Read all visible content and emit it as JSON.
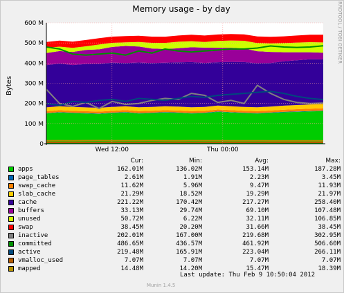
{
  "chart_data": {
    "type": "area",
    "title": "Memory usage - by day",
    "ylabel": "Bytes",
    "xlabel": "",
    "x_ticks": [
      "Wed 12:00",
      "Thu 00:00"
    ],
    "y_ticks": [
      "0",
      "100 M",
      "200 M",
      "300 M",
      "400 M",
      "500 M",
      "600 M"
    ],
    "ylim": [
      0,
      600
    ],
    "y_unit": "M",
    "grid": true,
    "stack_order": [
      "apps",
      "page_tables",
      "swap_cache",
      "slab_cache",
      "cache",
      "buffers",
      "unused",
      "swap"
    ],
    "line_series": [
      "inactive",
      "committed",
      "active",
      "vmalloc_used",
      "mapped"
    ],
    "series": [
      {
        "name": "apps",
        "color": "#00cc00",
        "cur": "162.01M",
        "min": "136.02M",
        "avg": "153.14M",
        "max": "187.28M",
        "values": [
          150,
          155,
          152,
          150,
          148,
          152,
          155,
          150,
          152,
          155,
          153,
          150,
          152,
          158,
          155,
          152,
          150,
          153,
          156,
          158,
          160,
          162
        ]
      },
      {
        "name": "page_tables",
        "color": "#0066b3",
        "cur": "2.61M",
        "min": "1.91M",
        "avg": "2.23M",
        "max": "3.45M",
        "values": [
          2.2,
          2.2,
          2.3,
          2.2,
          2.1,
          2.2,
          2.3,
          2.2,
          2.2,
          2.3,
          2.2,
          2.2,
          2.3,
          2.2,
          2.2,
          2.3,
          2.2,
          2.2,
          2.3,
          2.4,
          2.5,
          2.6
        ]
      },
      {
        "name": "swap_cache",
        "color": "#ff8000",
        "cur": "11.62M",
        "min": "5.96M",
        "avg": "9.47M",
        "max": "11.93M",
        "values": [
          9,
          9.5,
          9,
          9.2,
          9.4,
          9,
          9.6,
          9.5,
          9.2,
          9.4,
          9.6,
          9.5,
          9.3,
          9.6,
          9.7,
          9.5,
          9.6,
          9.8,
          10.5,
          11,
          11.5,
          11.6
        ]
      },
      {
        "name": "slab_cache",
        "color": "#ffcc00",
        "cur": "21.29M",
        "min": "18.52M",
        "avg": "19.29M",
        "max": "21.97M",
        "values": [
          19,
          19,
          19.2,
          19.1,
          19,
          19.3,
          19.2,
          19,
          19.1,
          19.4,
          19.2,
          19.1,
          19.3,
          19.4,
          19.2,
          19.1,
          19.3,
          19.6,
          20,
          20.5,
          21,
          21.3
        ]
      },
      {
        "name": "cache",
        "color": "#330099",
        "cur": "221.22M",
        "min": "170.42M",
        "avg": "217.27M",
        "max": "258.40M",
        "values": [
          210,
          212,
          208,
          215,
          218,
          220,
          214,
          222,
          218,
          216,
          220,
          224,
          218,
          215,
          220,
          222,
          218,
          216,
          220,
          222,
          224,
          221
        ]
      },
      {
        "name": "buffers",
        "color": "#990099",
        "cur": "33.13M",
        "min": "29.74M",
        "avg": "69.10M",
        "max": "107.48M",
        "values": [
          60,
          62,
          65,
          70,
          72,
          78,
          85,
          80,
          72,
          68,
          70,
          74,
          76,
          72,
          70,
          68,
          60,
          55,
          45,
          40,
          35,
          33
        ]
      },
      {
        "name": "unused",
        "color": "#ccff00",
        "cur": "50.72M",
        "min": "6.22M",
        "avg": "32.11M",
        "max": "106.85M",
        "values": [
          25,
          22,
          20,
          18,
          24,
          20,
          18,
          22,
          28,
          30,
          32,
          30,
          28,
          34,
          36,
          38,
          40,
          42,
          45,
          48,
          50,
          51
        ]
      },
      {
        "name": "swap",
        "color": "#ff0000",
        "cur": "38.45M",
        "min": "20.20M",
        "avg": "31.66M",
        "max": "38.45M",
        "values": [
          30,
          30,
          31,
          31,
          31,
          31,
          31,
          31,
          31,
          31,
          31,
          32,
          32,
          32,
          32,
          32,
          33,
          33,
          34,
          35,
          37,
          38.5
        ]
      },
      {
        "name": "inactive",
        "color": "#808080",
        "cur": "202.01M",
        "min": "167.00M",
        "avg": "219.68M",
        "max": "302.95M",
        "values": [
          270,
          200,
          185,
          205,
          175,
          210,
          195,
          200,
          215,
          225,
          220,
          250,
          240,
          205,
          215,
          200,
          290,
          250,
          220,
          205,
          200,
          202
        ]
      },
      {
        "name": "committed",
        "color": "#008f00",
        "cur": "486.65M",
        "min": "436.57M",
        "avg": "461.92M",
        "max": "506.60M",
        "values": [
          480,
          470,
          445,
          440,
          445,
          450,
          440,
          460,
          450,
          470,
          460,
          455,
          460,
          465,
          470,
          470,
          475,
          485,
          480,
          478,
          480,
          486
        ]
      },
      {
        "name": "active",
        "color": "#00487d",
        "cur": "219.48M",
        "min": "165.91M",
        "avg": "223.04M",
        "max": "266.11M",
        "values": [
          200,
          190,
          210,
          205,
          215,
          220,
          210,
          225,
          220,
          215,
          225,
          235,
          230,
          240,
          245,
          250,
          255,
          260,
          250,
          235,
          225,
          219
        ]
      },
      {
        "name": "vmalloc_used",
        "color": "#b35a00",
        "cur": "7.07M",
        "min": "7.07M",
        "avg": "7.07M",
        "max": "7.07M",
        "values": [
          7,
          7,
          7,
          7,
          7,
          7,
          7,
          7,
          7,
          7,
          7,
          7,
          7,
          7,
          7,
          7,
          7,
          7,
          7,
          7,
          7,
          7
        ]
      },
      {
        "name": "mapped",
        "color": "#b38f00",
        "cur": "14.48M",
        "min": "14.20M",
        "avg": "15.47M",
        "max": "18.39M",
        "values": [
          15,
          15.5,
          15.2,
          15.8,
          16,
          15.4,
          15.6,
          15.8,
          16.2,
          15.3,
          15.1,
          15.6,
          15.4,
          15.5,
          15.2,
          15.1,
          15.0,
          14.9,
          14.8,
          14.6,
          14.5,
          14.5
        ]
      }
    ]
  },
  "legend_headers": {
    "cur": "Cur:",
    "min": "Min:",
    "avg": "Avg:",
    "max": "Max:"
  },
  "last_update": "Last update:  Thu Feb  9 10:50:04 2012",
  "footer": "Munin 1.4.5",
  "side_text": "RRDTOOL / TOBI OETIKER"
}
